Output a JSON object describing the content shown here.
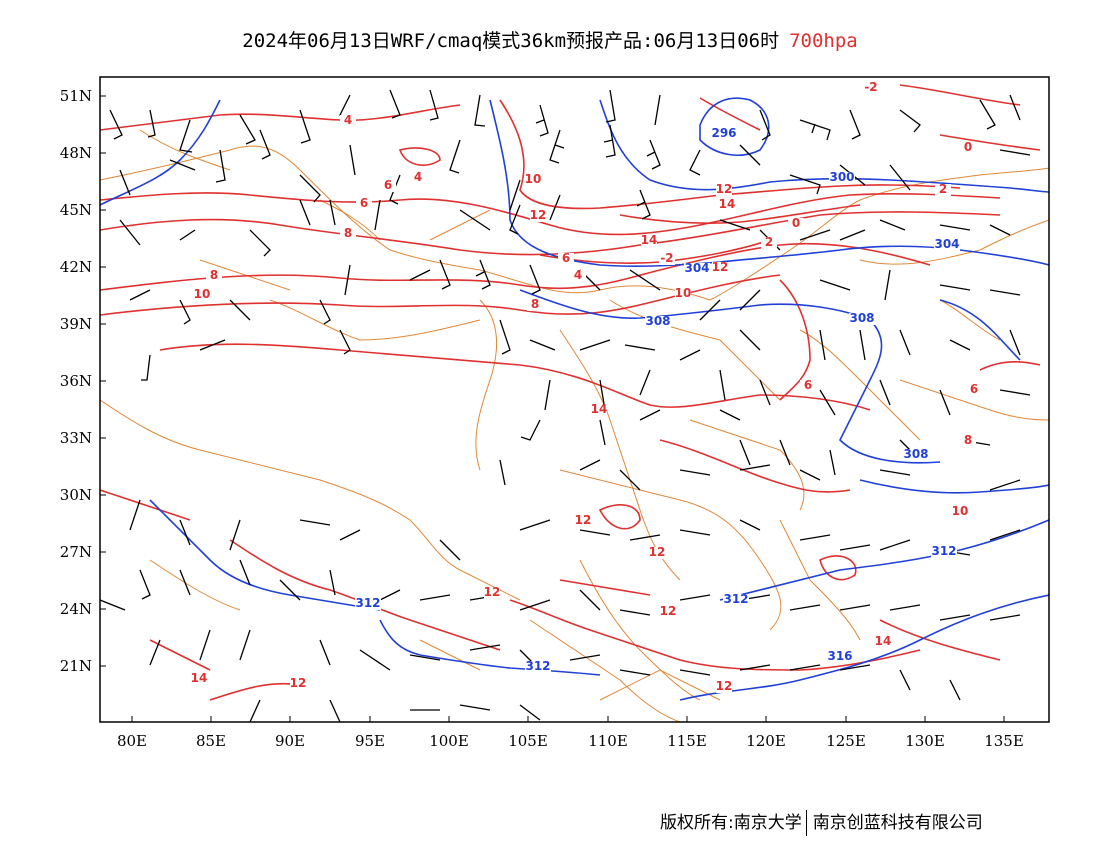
{
  "title": {
    "main": "2024年06月13日WRF/cmaq模式36km预报产品:06月13日06时",
    "level": "700hpa"
  },
  "axes": {
    "lat_labels": [
      "51N",
      "48N",
      "45N",
      "42N",
      "39N",
      "36N",
      "33N",
      "30N",
      "27N",
      "24N",
      "21N"
    ],
    "lon_labels": [
      "80E",
      "85E",
      "90E",
      "95E",
      "100E",
      "105E",
      "110E",
      "115E",
      "120E",
      "125E",
      "130E",
      "135E"
    ]
  },
  "temperature_labels": [
    "-2",
    "0",
    "2",
    "4",
    "4",
    "6",
    "6",
    "8",
    "8",
    "10",
    "10",
    "12",
    "12",
    "14",
    "14",
    "-2",
    "0",
    "2",
    "4",
    "6",
    "8",
    "10",
    "12",
    "14",
    "6",
    "6",
    "8",
    "10",
    "12",
    "12",
    "12",
    "12",
    "14",
    "12",
    "12",
    "14"
  ],
  "height_labels": [
    "296",
    "300",
    "304",
    "304",
    "308",
    "308",
    "308",
    "312",
    "312",
    "312",
    "312",
    "316"
  ],
  "colors": {
    "temperature": "#e03030",
    "geopotential": "#2040d8",
    "boundary": "#e08838",
    "wind": "#000000"
  },
  "footer": {
    "copyright": "版权所有:南京大学",
    "company": "南京创蓝科技有限公司"
  }
}
